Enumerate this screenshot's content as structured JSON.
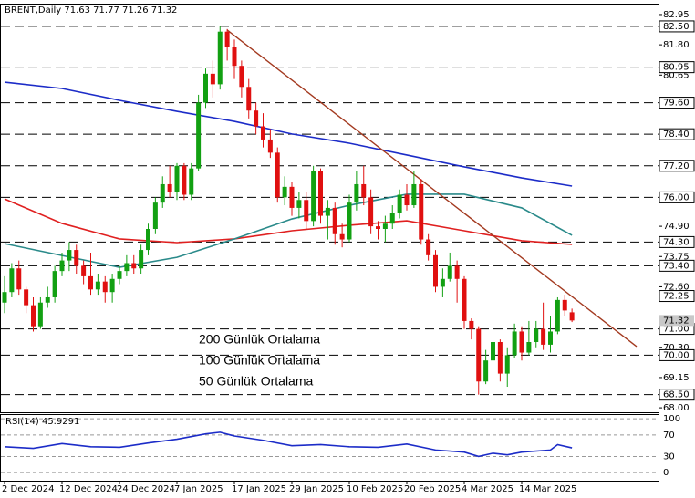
{
  "chart_data": {
    "type": "candlestick",
    "title": "BRENT,Daily  71.63 71.77 71.26 71.32",
    "categories": [
      "2 Dec 2024",
      null,
      null,
      null,
      null,
      null,
      null,
      null,
      "12 Dec 2024",
      null,
      null,
      null,
      null,
      null,
      null,
      null,
      "24 Dec 2024",
      null,
      null,
      null,
      null,
      null,
      null,
      null,
      "7 Jan 2025",
      null,
      null,
      null,
      null,
      null,
      null,
      null,
      "17 Jan 2025",
      null,
      null,
      null,
      null,
      null,
      null,
      null,
      "29 Jan 2025",
      null,
      null,
      null,
      null,
      null,
      null,
      null,
      "10 Feb 2025",
      null,
      null,
      null,
      null,
      null,
      null,
      null,
      "20 Feb 2025",
      null,
      null,
      null,
      null,
      null,
      null,
      null,
      "4 Mar 2025",
      null,
      null,
      null,
      null,
      null,
      null,
      null,
      "14 Mar 2025",
      null,
      null,
      null,
      null,
      null,
      null,
      null
    ],
    "open": [
      72.0,
      72.4,
      73.3,
      72.5,
      71.9,
      71.1,
      72.0,
      72.2,
      73.2,
      73.6,
      74.0,
      73.4,
      73.0,
      72.5,
      72.8,
      72.4,
      72.9,
      73.2,
      73.5,
      73.3,
      74.0,
      74.8,
      75.8,
      76.5,
      76.2,
      77.2,
      76.1,
      77.1,
      79.6,
      80.7,
      80.3,
      82.3,
      81.7,
      81.0,
      80.2,
      79.3,
      78.7,
      78.2,
      77.7,
      76.0,
      76.4,
      75.6,
      75.9,
      75.1,
      77.0,
      75.3,
      75.6,
      74.6,
      74.4,
      75.8,
      76.5,
      76.0,
      74.9,
      74.8,
      75.0,
      75.4,
      76.1,
      75.7,
      76.5,
      74.4,
      73.8,
      72.6,
      72.9,
      73.4,
      72.9,
      71.3,
      71.0,
      69.0,
      69.8,
      70.5,
      69.3,
      70.0,
      70.9,
      70.1,
      70.5,
      71.0,
      70.4,
      70.9,
      72.1,
      71.63
    ],
    "high": [
      73.0,
      73.5,
      73.6,
      72.6,
      72.2,
      72.2,
      72.6,
      73.4,
      73.9,
      74.3,
      74.2,
      73.6,
      73.9,
      73.1,
      73.0,
      73.1,
      73.4,
      73.8,
      73.8,
      74.2,
      75.0,
      76.0,
      76.8,
      77.2,
      77.3,
      77.3,
      77.3,
      79.9,
      80.9,
      81.2,
      82.5,
      82.4,
      82.0,
      81.2,
      80.5,
      79.6,
      79.2,
      78.6,
      77.9,
      76.8,
      76.6,
      76.2,
      76.2,
      77.2,
      77.1,
      75.9,
      75.8,
      75.0,
      76.1,
      77.0,
      77.2,
      76.3,
      75.1,
      75.3,
      75.7,
      76.3,
      76.5,
      77.0,
      76.7,
      74.6,
      74.0,
      73.3,
      73.9,
      73.6,
      73.0,
      71.4,
      71.1,
      70.2,
      71.2,
      70.6,
      70.3,
      71.2,
      71.1,
      71.3,
      71.3,
      72.0,
      71.5,
      72.2,
      72.3,
      71.77
    ],
    "low": [
      71.6,
      72.2,
      72.3,
      71.6,
      70.9,
      71.0,
      71.8,
      72.0,
      73.0,
      73.2,
      73.1,
      72.7,
      72.3,
      72.3,
      72.0,
      72.0,
      72.7,
      73.0,
      73.1,
      73.1,
      73.8,
      74.6,
      75.6,
      76.0,
      75.9,
      75.9,
      75.9,
      77.0,
      79.4,
      79.8,
      80.1,
      81.2,
      80.5,
      79.8,
      79.0,
      78.4,
      77.9,
      77.5,
      75.8,
      75.7,
      75.3,
      75.2,
      74.8,
      74.9,
      75.0,
      74.4,
      74.2,
      74.1,
      74.3,
      75.5,
      75.7,
      74.6,
      74.4,
      74.3,
      74.8,
      75.2,
      75.5,
      75.6,
      74.2,
      73.6,
      72.4,
      72.2,
      72.8,
      72.0,
      71.0,
      70.6,
      68.5,
      68.9,
      69.1,
      69.0,
      68.8,
      69.9,
      69.8,
      70.0,
      70.3,
      70.2,
      70.1,
      70.8,
      71.5,
      71.26
    ],
    "close": [
      72.4,
      73.3,
      72.5,
      71.9,
      71.1,
      72.0,
      72.2,
      73.2,
      73.6,
      74.0,
      73.4,
      73.0,
      72.5,
      72.8,
      72.4,
      72.9,
      73.2,
      73.5,
      73.3,
      74.0,
      74.8,
      75.8,
      76.5,
      76.2,
      77.2,
      76.1,
      77.1,
      79.6,
      80.7,
      80.3,
      82.3,
      81.7,
      81.0,
      80.2,
      79.3,
      78.7,
      78.2,
      77.7,
      76.0,
      76.4,
      75.6,
      75.9,
      75.1,
      77.0,
      75.3,
      75.6,
      74.6,
      74.4,
      75.8,
      76.5,
      76.0,
      74.9,
      74.8,
      75.0,
      75.4,
      76.1,
      75.7,
      76.5,
      74.4,
      73.8,
      72.6,
      72.9,
      73.4,
      72.9,
      71.3,
      71.0,
      69.0,
      69.8,
      70.5,
      69.3,
      70.0,
      70.9,
      70.1,
      70.5,
      71.0,
      70.4,
      70.9,
      72.1,
      71.7,
      71.32
    ],
    "up_color": "#12a012",
    "down_color": "#e01010",
    "ylim": [
      67.83,
      83.33
    ],
    "yticks": [
      82.95,
      {
        "value": 81.8,
        "label": "81.80"
      },
      80.65,
      {
        "value": 74.9,
        "label": "74.90"
      },
      73.75,
      {
        "value": 72.6,
        "label": "72.60"
      },
      {
        "value": 70.3,
        "label": "70.30"
      },
      69.15,
      {
        "value": 68,
        "label": "68.00"
      }
    ],
    "levels": [
      {
        "value": 82.5,
        "label": "82.50"
      },
      80.95,
      {
        "value": 79.6,
        "label": "79.60"
      },
      {
        "value": 78.4,
        "label": "78.40"
      },
      {
        "value": 77.2,
        "label": "77.20"
      },
      {
        "value": 76,
        "label": "76.00"
      },
      {
        "value": 74.3,
        "label": "74.30"
      },
      {
        "value": 73.4,
        "label": "73.40"
      },
      72.25,
      {
        "value": 71,
        "label": "71.00"
      },
      {
        "value": 70,
        "label": "70.00"
      },
      {
        "value": 68.5,
        "label": "68.50"
      }
    ],
    "last_price": 71.32,
    "moving_averages": [
      {
        "name": "200 Günlük Ortalama",
        "color": "#1c2cc8",
        "x": [
          0,
          8,
          16,
          24,
          32,
          40,
          48,
          56,
          64,
          72,
          79
        ],
        "values": [
          80.38,
          80.14,
          79.69,
          79.27,
          78.89,
          78.41,
          78.06,
          77.61,
          77.16,
          76.74,
          76.43
        ]
      },
      {
        "name": "100 Günlük Ortalama",
        "color": "#e02020",
        "x": [
          0,
          8,
          16,
          24,
          32,
          40,
          48,
          56,
          64,
          72,
          79
        ],
        "values": [
          75.94,
          75.01,
          74.42,
          74.28,
          74.42,
          74.73,
          74.94,
          75.11,
          74.73,
          74.35,
          74.21
        ]
      },
      {
        "name": "50 Günlük Ortalama",
        "color": "#2a8a8a",
        "x": [
          0,
          8,
          16,
          24,
          32,
          40,
          48,
          56,
          64,
          72,
          79
        ],
        "values": [
          74.24,
          73.79,
          73.34,
          73.72,
          74.42,
          75.18,
          75.7,
          76.12,
          76.12,
          75.6,
          74.56
        ]
      }
    ],
    "trendline": {
      "color": "#a33a20",
      "x": [
        31,
        88
      ],
      "values": [
        82.36,
        70.33
      ]
    },
    "rsi": {
      "title": "RSI(14) 45.9291",
      "color": "#1c2cc8",
      "ylim": [
        -15,
        107
      ],
      "yticks": [
        100,
        70,
        30,
        0
      ],
      "x": [
        0,
        4,
        8,
        12,
        16,
        20,
        24,
        28,
        30,
        32,
        36,
        40,
        44,
        48,
        52,
        56,
        60,
        64,
        66,
        68,
        70,
        72,
        76,
        77,
        79
      ],
      "values": [
        48,
        45,
        54,
        48,
        47,
        55,
        62,
        72,
        75,
        68,
        60,
        50,
        52,
        48,
        47,
        53,
        42,
        38,
        30,
        36,
        33,
        38,
        42,
        52,
        45.93
      ]
    }
  }
}
